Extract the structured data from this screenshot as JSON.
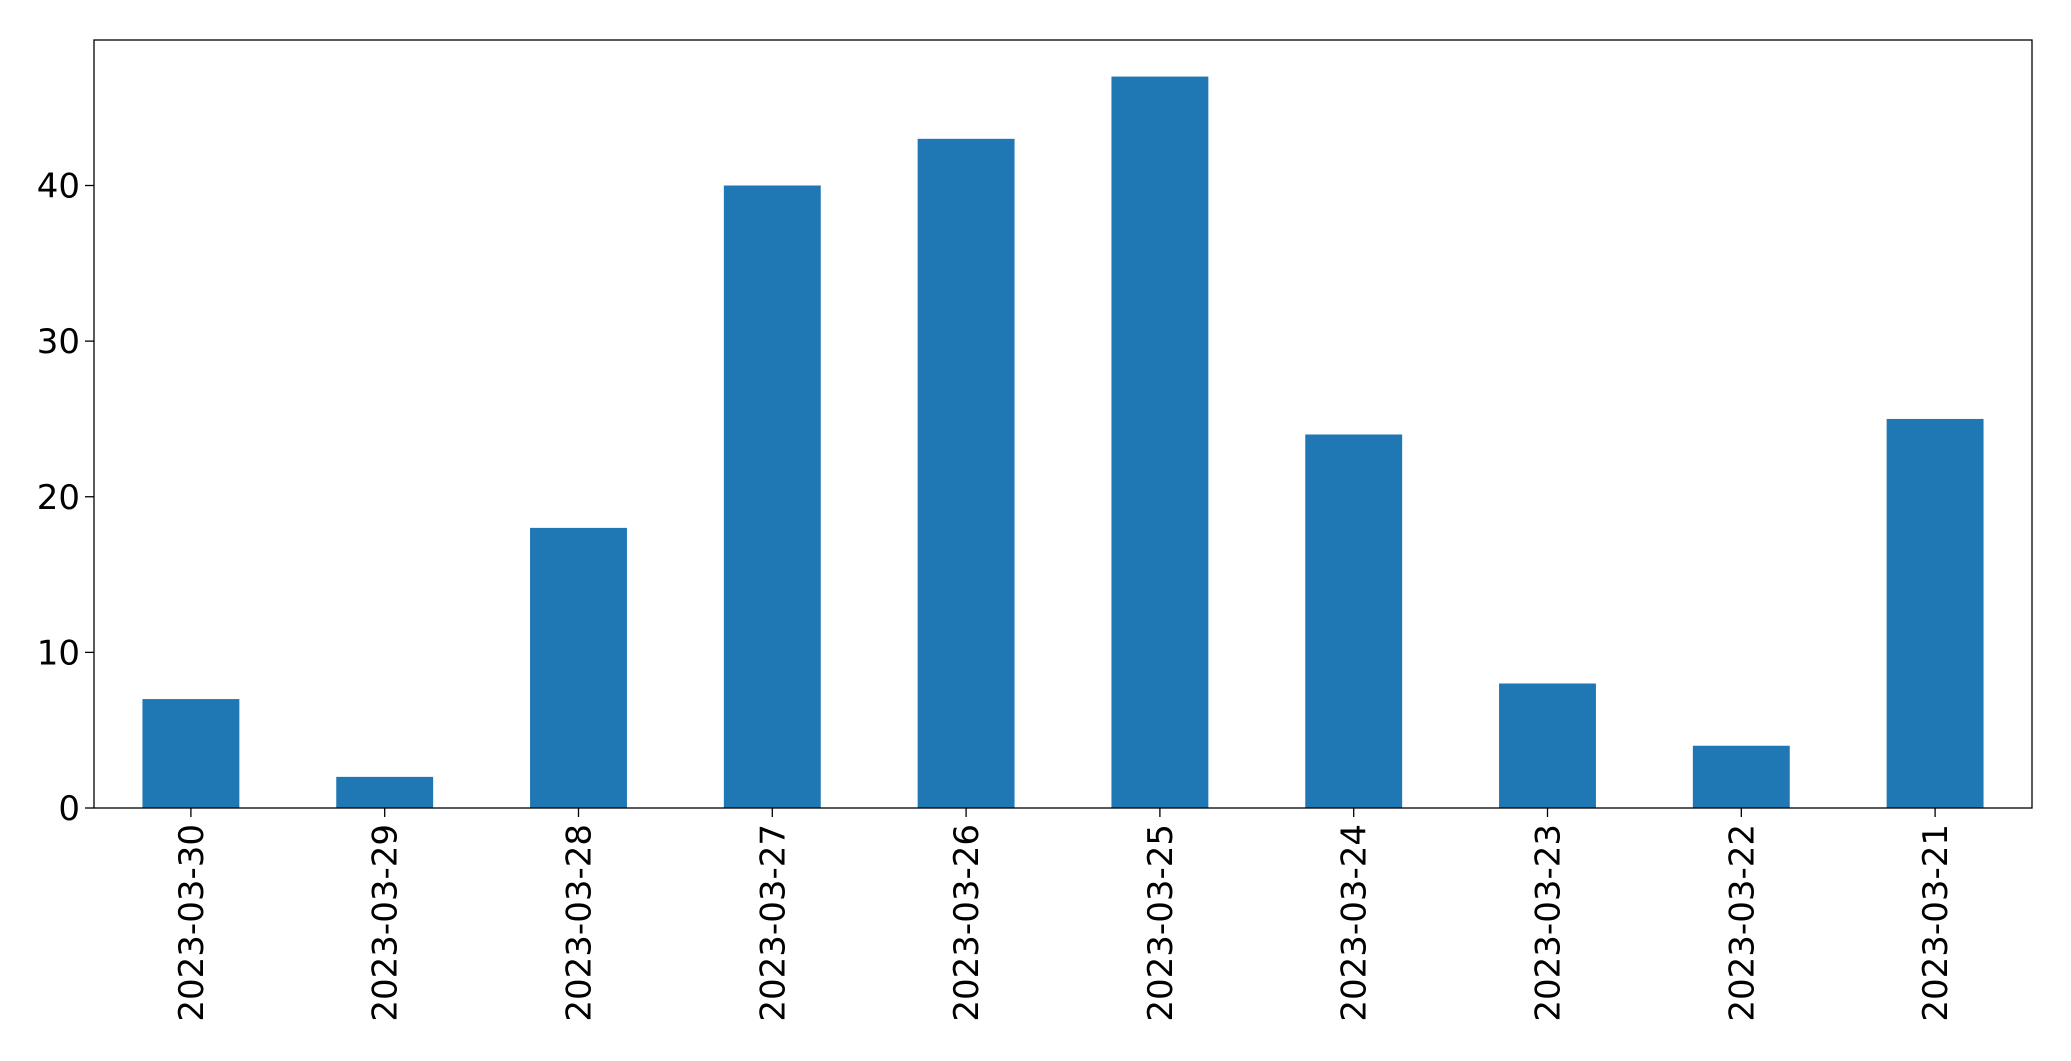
{
  "chart_data": {
    "type": "bar",
    "categories": [
      "2023-03-30",
      "2023-03-29",
      "2023-03-28",
      "2023-03-27",
      "2023-03-26",
      "2023-03-25",
      "2023-03-24",
      "2023-03-23",
      "2023-03-22",
      "2023-03-21"
    ],
    "values": [
      7,
      2,
      18,
      40,
      43,
      47,
      24,
      8,
      4,
      25
    ],
    "color": "#1f77b4",
    "ylim": [
      0,
      49.35
    ],
    "yticks": [
      0,
      10,
      20,
      30,
      40
    ],
    "grid": false
  }
}
